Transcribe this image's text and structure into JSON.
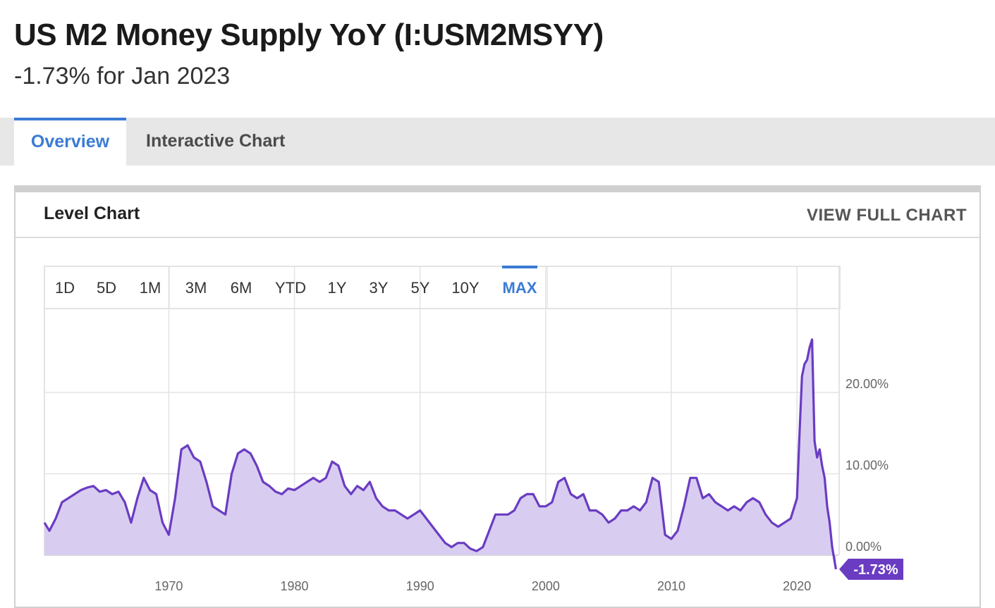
{
  "header": {
    "title": "US M2 Money Supply YoY (I:USM2MSYY)",
    "subtitle": "-1.73% for Jan 2023"
  },
  "tabs": [
    {
      "label": "Overview",
      "active": true
    },
    {
      "label": "Interactive Chart",
      "active": false
    }
  ],
  "panel": {
    "title": "Level Chart",
    "view_full_label": "VIEW FULL CHART"
  },
  "range_buttons": [
    {
      "label": "1D",
      "active": false
    },
    {
      "label": "5D",
      "active": false
    },
    {
      "label": "1M",
      "active": false
    },
    {
      "label": "3M",
      "active": false
    },
    {
      "label": "6M",
      "active": false
    },
    {
      "label": "YTD",
      "active": false
    },
    {
      "label": "1Y",
      "active": false
    },
    {
      "label": "3Y",
      "active": false
    },
    {
      "label": "5Y",
      "active": false
    },
    {
      "label": "10Y",
      "active": false
    },
    {
      "label": "MAX",
      "active": true
    }
  ],
  "colors": {
    "accent": "#3a7bd5",
    "series_line": "#6a3cc2",
    "series_fill": "#d8cdf0",
    "callout_bg": "#6a3cc2",
    "grid": "#e3e3e3"
  },
  "chart_data": {
    "type": "area",
    "title": "",
    "xlabel": "",
    "ylabel": "",
    "x_ticks": [
      "1970",
      "1980",
      "1990",
      "2000",
      "2010",
      "2020"
    ],
    "y_ticks": [
      "20.00%",
      "10.00%",
      "0.00%"
    ],
    "xlim": [
      1960.1,
      2023.3
    ],
    "ylim": [
      -3,
      30
    ],
    "grid": true,
    "last_value_label": "-1.73%",
    "series": [
      {
        "x": [
          1960.1,
          1960.5,
          1961.0,
          1961.5,
          1962.0,
          1962.5,
          1963.0,
          1963.5,
          1964.0,
          1964.5,
          1965.0,
          1965.5,
          1966.0,
          1966.5,
          1967.0,
          1967.5,
          1968.0,
          1968.5,
          1969.0,
          1969.5,
          1970.0,
          1970.5,
          1971.0,
          1971.5,
          1972.0,
          1972.5,
          1973.0,
          1973.5,
          1974.0,
          1974.5,
          1975.0,
          1975.5,
          1976.0,
          1976.5,
          1977.0,
          1977.5,
          1978.0,
          1978.5,
          1979.0,
          1979.5,
          1980.0,
          1980.5,
          1981.0,
          1981.5,
          1982.0,
          1982.5,
          1983.0,
          1983.5,
          1984.0,
          1984.5,
          1985.0,
          1985.5,
          1986.0,
          1986.5,
          1987.0,
          1987.5,
          1988.0,
          1988.5,
          1989.0,
          1989.5,
          1990.0,
          1990.5,
          1991.0,
          1991.5,
          1992.0,
          1992.5,
          1993.0,
          1993.5,
          1994.0,
          1994.5,
          1995.0,
          1995.5,
          1996.0,
          1996.5,
          1997.0,
          1997.5,
          1998.0,
          1998.5,
          1999.0,
          1999.5,
          2000.0,
          2000.5,
          2001.0,
          2001.5,
          2002.0,
          2002.5,
          2003.0,
          2003.5,
          2004.0,
          2004.5,
          2005.0,
          2005.5,
          2006.0,
          2006.5,
          2007.0,
          2007.5,
          2008.0,
          2008.5,
          2009.0,
          2009.5,
          2010.0,
          2010.5,
          2011.0,
          2011.5,
          2012.0,
          2012.5,
          2013.0,
          2013.5,
          2014.0,
          2014.5,
          2015.0,
          2015.5,
          2016.0,
          2016.5,
          2017.0,
          2017.5,
          2018.0,
          2018.5,
          2019.0,
          2019.5,
          2020.0,
          2020.2,
          2020.4,
          2020.6,
          2020.8,
          2021.0,
          2021.2,
          2021.4,
          2021.6,
          2021.8,
          2022.0,
          2022.2,
          2022.4,
          2022.6,
          2022.8,
          2023.1
        ],
        "y": [
          4.0,
          3.0,
          4.5,
          6.5,
          7.0,
          7.5,
          8.0,
          8.3,
          8.5,
          7.8,
          8.0,
          7.5,
          7.8,
          6.5,
          4.0,
          7.0,
          9.5,
          8.0,
          7.5,
          4.0,
          2.5,
          7.0,
          13.0,
          13.5,
          12.0,
          11.5,
          9.0,
          6.0,
          5.5,
          5.0,
          10.0,
          12.5,
          13.0,
          12.5,
          11.0,
          9.0,
          8.5,
          7.8,
          7.5,
          8.2,
          8.0,
          8.5,
          9.0,
          9.5,
          9.0,
          9.5,
          11.5,
          11.0,
          8.5,
          7.5,
          8.5,
          8.0,
          9.0,
          7.0,
          6.0,
          5.5,
          5.5,
          5.0,
          4.5,
          5.0,
          5.5,
          4.5,
          3.5,
          2.5,
          1.5,
          1.0,
          1.5,
          1.5,
          0.8,
          0.5,
          1.0,
          3.0,
          5.0,
          5.0,
          5.0,
          5.5,
          7.0,
          7.5,
          7.5,
          6.0,
          6.0,
          6.5,
          9.0,
          9.5,
          7.5,
          7.0,
          7.5,
          5.5,
          5.5,
          5.0,
          4.0,
          4.5,
          5.5,
          5.5,
          6.0,
          5.5,
          6.5,
          9.5,
          9.0,
          2.5,
          2.0,
          3.0,
          6.0,
          9.5,
          9.5,
          7.0,
          7.5,
          6.5,
          6.0,
          5.5,
          6.0,
          5.5,
          6.5,
          7.0,
          6.5,
          5.0,
          4.0,
          3.5,
          4.0,
          4.5,
          7.0,
          15.0,
          22.0,
          23.5,
          24.0,
          25.5,
          26.5,
          14.0,
          12.0,
          13.0,
          11.0,
          9.5,
          6.0,
          4.0,
          1.0,
          -1.73
        ]
      }
    ]
  }
}
